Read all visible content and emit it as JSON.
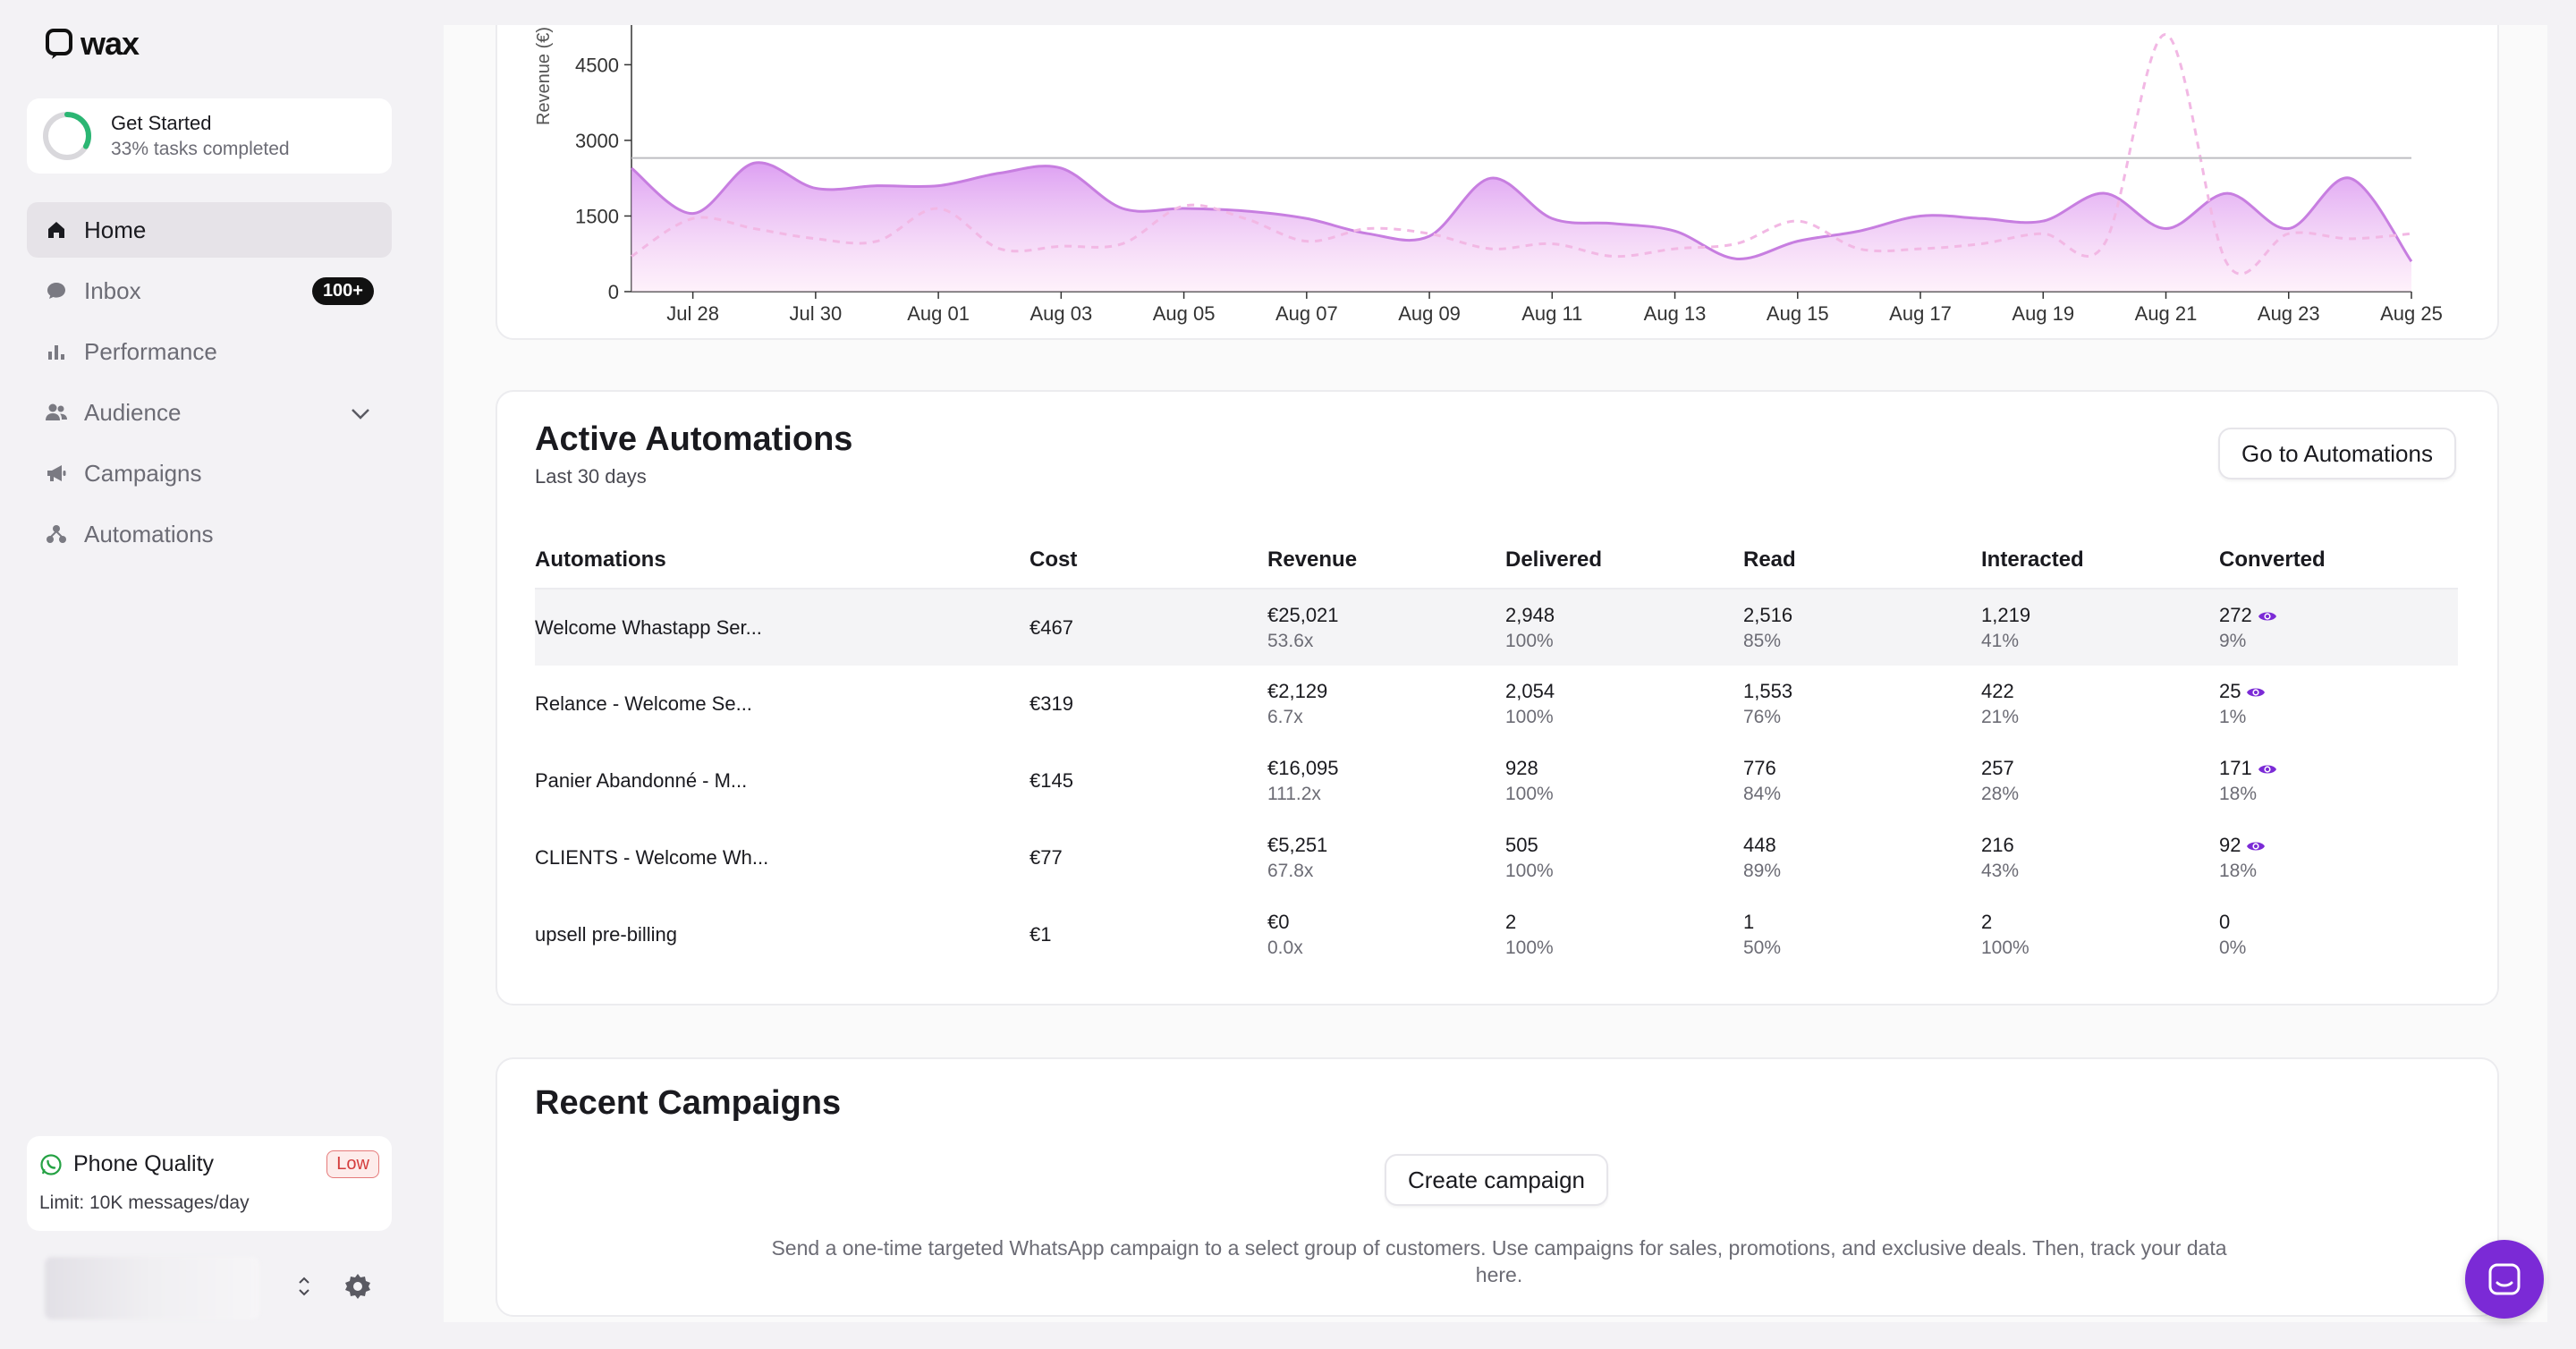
{
  "app": {
    "logo_text": "wax"
  },
  "get_started": {
    "title": "Get Started",
    "subtitle": "33% tasks completed",
    "progress": 0.33
  },
  "nav": {
    "items": [
      {
        "label": "Home",
        "icon": "home-icon",
        "active": true
      },
      {
        "label": "Inbox",
        "icon": "chat-bubble-icon",
        "badge": "100+"
      },
      {
        "label": "Performance",
        "icon": "bar-chart-icon"
      },
      {
        "label": "Audience",
        "icon": "users-icon"
      },
      {
        "label": "Campaigns",
        "icon": "megaphone-icon"
      },
      {
        "label": "Automations",
        "icon": "hierarchy-icon"
      }
    ]
  },
  "phone_quality": {
    "title": "Phone Quality",
    "badge": "Low",
    "limit": "Limit: 10K messages/day"
  },
  "chart_data": {
    "type": "area",
    "ylabel": "Revenue (€)",
    "yticks": [
      0,
      1500,
      3000,
      4500
    ],
    "ylim": [
      0,
      5500
    ],
    "xticks": [
      "Jul 28",
      "Jul 30",
      "Aug 01",
      "Aug 03",
      "Aug 05",
      "Aug 07",
      "Aug 09",
      "Aug 11",
      "Aug 13",
      "Aug 15",
      "Aug 17",
      "Aug 19",
      "Aug 21",
      "Aug 23",
      "Aug 25"
    ],
    "x": [
      "Jul 27",
      "Jul 28",
      "Jul 29",
      "Jul 30",
      "Jul 31",
      "Aug 01",
      "Aug 02",
      "Aug 03",
      "Aug 04",
      "Aug 05",
      "Aug 06",
      "Aug 07",
      "Aug 08",
      "Aug 09",
      "Aug 10",
      "Aug 11",
      "Aug 12",
      "Aug 13",
      "Aug 14",
      "Aug 15",
      "Aug 16",
      "Aug 17",
      "Aug 18",
      "Aug 19",
      "Aug 20",
      "Aug 21",
      "Aug 22",
      "Aug 23",
      "Aug 24",
      "Aug 25"
    ],
    "series": [
      {
        "name": "",
        "style": "solid-area",
        "color": "#c77ee0",
        "values": [
          2450,
          1550,
          2550,
          2050,
          2100,
          2100,
          2350,
          2450,
          1650,
          1650,
          1600,
          1450,
          1150,
          1100,
          2250,
          1450,
          1350,
          1200,
          650,
          1000,
          1200,
          1500,
          1450,
          1400,
          1950,
          1250,
          1950,
          1250,
          2250,
          600
        ]
      },
      {
        "name": "",
        "style": "dashed",
        "color": "#f2b8e4",
        "values": [
          700,
          1450,
          1250,
          1050,
          1000,
          1650,
          850,
          900,
          950,
          1700,
          1450,
          1000,
          1250,
          1150,
          850,
          950,
          700,
          850,
          950,
          1400,
          850,
          850,
          950,
          1150,
          950,
          5100,
          550,
          1150,
          1050,
          1150
        ]
      }
    ],
    "reference_line": 2650
  },
  "automations": {
    "title": "Active Automations",
    "subtitle": "Last 30 days",
    "button": "Go to Automations",
    "columns": [
      "Automations",
      "Cost",
      "Revenue",
      "Delivered",
      "Read",
      "Interacted",
      "Converted"
    ],
    "rows": [
      {
        "name": "Welcome Whastapp Ser...",
        "cost": "€467",
        "revenue": "€25,021",
        "roi": "53.6x",
        "delivered": "2,948",
        "delivered_pct": "100%",
        "read": "2,516",
        "read_pct": "85%",
        "interacted": "1,219",
        "interacted_pct": "41%",
        "converted": "272",
        "converted_pct": "9%",
        "eye": true
      },
      {
        "name": "Relance - Welcome Se...",
        "cost": "€319",
        "revenue": "€2,129",
        "roi": "6.7x",
        "delivered": "2,054",
        "delivered_pct": "100%",
        "read": "1,553",
        "read_pct": "76%",
        "interacted": "422",
        "interacted_pct": "21%",
        "converted": "25",
        "converted_pct": "1%",
        "eye": true
      },
      {
        "name": "Panier Abandonné - M...",
        "cost": "€145",
        "revenue": "€16,095",
        "roi": "111.2x",
        "delivered": "928",
        "delivered_pct": "100%",
        "read": "776",
        "read_pct": "84%",
        "interacted": "257",
        "interacted_pct": "28%",
        "converted": "171",
        "converted_pct": "18%",
        "eye": true
      },
      {
        "name": "CLIENTS - Welcome Wh...",
        "cost": "€77",
        "revenue": "€5,251",
        "roi": "67.8x",
        "delivered": "505",
        "delivered_pct": "100%",
        "read": "448",
        "read_pct": "89%",
        "interacted": "216",
        "interacted_pct": "43%",
        "converted": "92",
        "converted_pct": "18%",
        "eye": true
      },
      {
        "name": "upsell pre-billing",
        "cost": "€1",
        "revenue": "€0",
        "roi": "0.0x",
        "delivered": "2",
        "delivered_pct": "100%",
        "read": "1",
        "read_pct": "50%",
        "interacted": "2",
        "interacted_pct": "100%",
        "converted": "0",
        "converted_pct": "0%",
        "eye": false
      }
    ]
  },
  "campaigns": {
    "title": "Recent Campaigns",
    "button": "Create campaign",
    "description": "Send a one-time targeted WhatsApp campaign to a select group of customers. Use campaigns for sales, promotions, and exclusive deals. Then, track your data here."
  },
  "colors": {
    "accent": "#7b2ad6",
    "area": "#c77ee0",
    "progress": "#2bb673"
  }
}
